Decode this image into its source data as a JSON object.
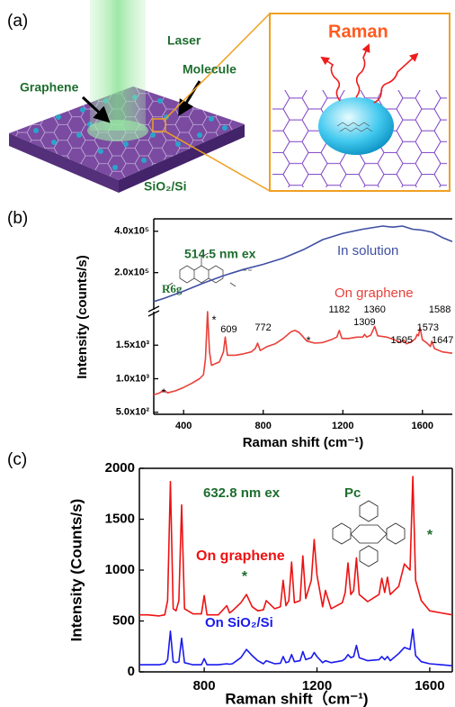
{
  "panel_a": {
    "label": "(a)",
    "laser": "Laser",
    "graphene": "Graphene",
    "molecule": "Molecule",
    "substrate": "SiO₂/Si",
    "raman": "Raman"
  },
  "panel_b": {
    "label": "(b)",
    "excitation": "514.5 nm ex",
    "molecule": "R6g",
    "annotations": [
      "*",
      "*",
      "*"
    ],
    "peak_labels": [
      609,
      772,
      1182,
      1309,
      1360,
      1505,
      1573,
      1588,
      1647
    ]
  },
  "panel_c": {
    "label": "(c)",
    "excitation": "632.8 nm ex",
    "molecule": "Pc",
    "annotations": [
      "*",
      "*"
    ]
  },
  "chart_data": [
    {
      "type": "line",
      "x": [
        250,
        300,
        400,
        500,
        600,
        700,
        800,
        900,
        1000,
        1100,
        1200,
        1300,
        1400,
        1450,
        1500,
        1550,
        1600,
        1650,
        1700,
        1750
      ],
      "series": [
        {
          "name": "In solution",
          "color": "#3f4fa3",
          "values": [
            60000,
            75000,
            110000,
            150000,
            185000,
            215000,
            240000,
            270000,
            310000,
            360000,
            390000,
            410000,
            425000,
            420000,
            425000,
            410000,
            405000,
            395000,
            370000,
            350000
          ]
        }
      ],
      "xlim": [
        250,
        1750
      ],
      "ylim": [
        20000,
        460000
      ],
      "yticks": [
        {
          "value": 200000,
          "label": "2.0x10⁵"
        },
        {
          "value": 400000,
          "label": "4.0x10⁵"
        }
      ]
    },
    {
      "type": "line",
      "x_label": "Raman shift (cm⁻¹)",
      "y_label": "Intensity (counts/s)",
      "x": [
        250,
        280,
        300,
        320,
        360,
        400,
        440,
        480,
        500,
        510,
        520,
        530,
        540,
        580,
        600,
        609,
        620,
        660,
        700,
        740,
        760,
        772,
        785,
        820,
        860,
        900,
        940,
        960,
        980,
        1020,
        1060,
        1100,
        1140,
        1170,
        1182,
        1195,
        1230,
        1270,
        1300,
        1309,
        1320,
        1340,
        1360,
        1375,
        1420,
        1460,
        1490,
        1505,
        1520,
        1550,
        1565,
        1573,
        1580,
        1588,
        1600,
        1620,
        1640,
        1647,
        1660,
        1700,
        1750
      ],
      "series": [
        {
          "name": "On graphene",
          "color": "#e8403a",
          "values": [
            760,
            790,
            830,
            790,
            820,
            870,
            930,
            1000,
            1060,
            1300,
            2000,
            1400,
            1200,
            1250,
            1400,
            1620,
            1350,
            1350,
            1370,
            1400,
            1450,
            1530,
            1420,
            1480,
            1520,
            1600,
            1700,
            1720,
            1690,
            1560,
            1530,
            1540,
            1580,
            1620,
            1720,
            1600,
            1600,
            1620,
            1620,
            1660,
            1620,
            1650,
            1780,
            1640,
            1620,
            1580,
            1540,
            1580,
            1520,
            1560,
            1600,
            1660,
            1640,
            1760,
            1580,
            1540,
            1480,
            1560,
            1450,
            1400,
            1380
          ]
        }
      ],
      "xlim": [
        250,
        1750
      ],
      "xticks": [
        400,
        800,
        1200,
        1600
      ],
      "ylim": [
        470,
        2000
      ],
      "yticks": [
        {
          "value": 500,
          "label": "5.0x10²"
        },
        {
          "value": 1000,
          "label": "1.0x10³"
        },
        {
          "value": 1500,
          "label": "1.5x10³"
        }
      ]
    },
    {
      "type": "line",
      "x_label": "Raman shift（cm⁻¹)",
      "y_label": "Intensity (Counts/s)",
      "x": [
        570,
        600,
        640,
        660,
        670,
        680,
        690,
        700,
        710,
        720,
        730,
        760,
        790,
        800,
        810,
        850,
        880,
        890,
        900,
        930,
        950,
        970,
        990,
        1010,
        1020,
        1050,
        1070,
        1080,
        1090,
        1100,
        1110,
        1120,
        1140,
        1150,
        1160,
        1180,
        1190,
        1200,
        1220,
        1230,
        1250,
        1290,
        1300,
        1310,
        1320,
        1330,
        1340,
        1350,
        1380,
        1420,
        1430,
        1440,
        1450,
        1460,
        1490,
        1510,
        1530,
        1540,
        1550,
        1570,
        1600,
        1640,
        1680
      ],
      "series": [
        {
          "name": "On graphene",
          "color": "#ee1111",
          "values": [
            560,
            560,
            550,
            560,
            700,
            1870,
            620,
            600,
            700,
            1640,
            620,
            570,
            570,
            750,
            560,
            560,
            650,
            580,
            600,
            680,
            760,
            640,
            600,
            610,
            700,
            620,
            640,
            900,
            650,
            700,
            1080,
            680,
            700,
            1140,
            720,
            900,
            1300,
            950,
            640,
            800,
            620,
            680,
            780,
            1070,
            760,
            800,
            1120,
            760,
            690,
            760,
            920,
            780,
            930,
            760,
            840,
            1060,
            1000,
            1920,
            900,
            700,
            600,
            580,
            560
          ]
        },
        {
          "name": "On SiO₂/Si",
          "color": "#1a1aee",
          "values": [
            70,
            70,
            70,
            80,
            120,
            400,
            100,
            90,
            100,
            330,
            90,
            70,
            70,
            130,
            70,
            70,
            80,
            75,
            80,
            140,
            220,
            160,
            110,
            80,
            110,
            80,
            85,
            150,
            90,
            100,
            170,
            100,
            110,
            200,
            120,
            140,
            190,
            150,
            90,
            110,
            90,
            110,
            130,
            170,
            140,
            150,
            260,
            140,
            110,
            120,
            150,
            120,
            150,
            110,
            180,
            240,
            220,
            420,
            160,
            100,
            80,
            70,
            60
          ]
        }
      ],
      "xlim": [
        570,
        1680
      ],
      "xticks": [
        800,
        1200,
        1600
      ],
      "ylim": [
        0,
        2000
      ],
      "yticks": [
        0,
        500,
        1000,
        1500,
        2000
      ]
    }
  ]
}
